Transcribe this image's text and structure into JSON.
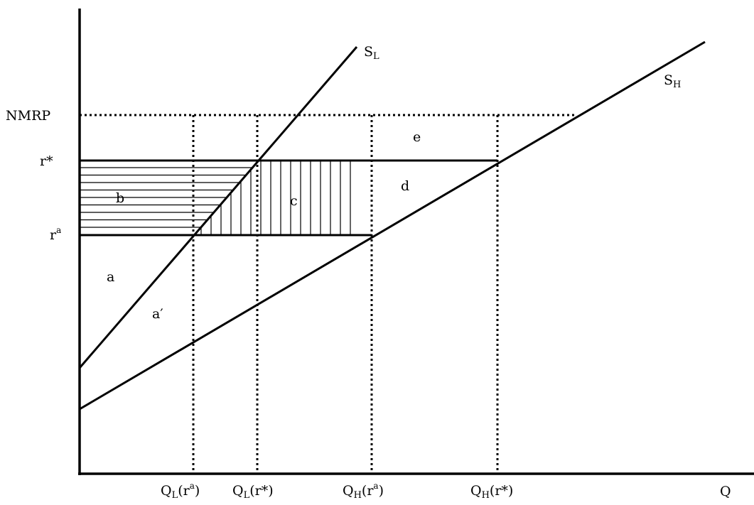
{
  "axes": {
    "y_levels": [
      {
        "id": "nmrp",
        "label": "NMRP",
        "sup": ""
      },
      {
        "id": "rstar",
        "label": "r*",
        "sup": ""
      },
      {
        "id": "ra",
        "label": "r",
        "sup": "a"
      }
    ],
    "x_label": "Q",
    "x_ticks": [
      {
        "id": "ql-ra",
        "main": "Q",
        "sub": "L",
        "paren_open": "(r",
        "sup": "a",
        "paren_close": ")"
      },
      {
        "id": "ql-rstar",
        "main": "Q",
        "sub": "L",
        "paren_open": "(r*)",
        "sup": "",
        "paren_close": ""
      },
      {
        "id": "qh-ra",
        "main": "Q",
        "sub": "H",
        "paren_open": "(r",
        "sup": "a",
        "paren_close": ")"
      },
      {
        "id": "qh-rstar",
        "main": "Q",
        "sub": "H",
        "paren_open": "(r*)",
        "sup": "",
        "paren_close": ""
      }
    ]
  },
  "curves": [
    {
      "id": "sl",
      "main": "S",
      "sub": "L"
    },
    {
      "id": "sh",
      "main": "S",
      "sub": "H"
    }
  ],
  "regions": {
    "a": "a",
    "a_prime": "a′",
    "b": "b",
    "c": "c",
    "d": "d",
    "e": "e"
  },
  "colors": {
    "ink": "#000000",
    "background": "#ffffff"
  }
}
